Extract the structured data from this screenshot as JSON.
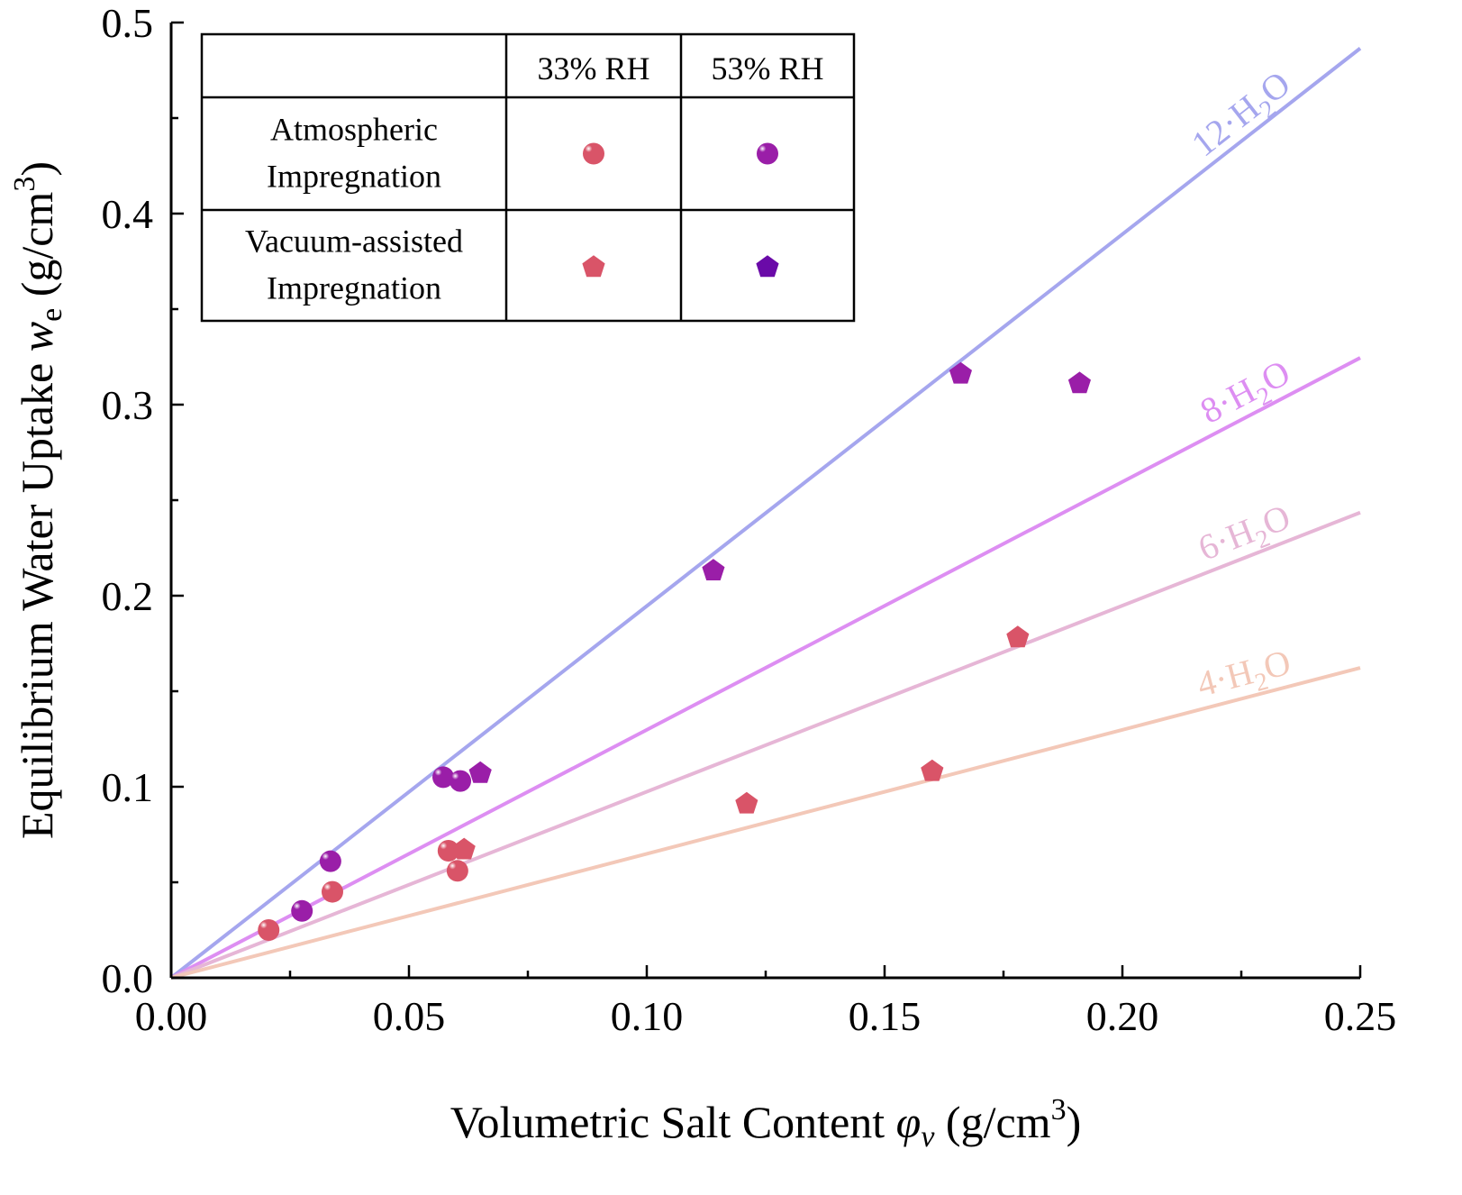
{
  "chart_data": {
    "type": "scatter",
    "xlabel": "Volumetric Salt Content φv (g/cm3)",
    "xlabel_parts": {
      "text": "Volumetric Salt Content ",
      "symbol": "φ",
      "sub": "v",
      "unit": " (g/cm",
      "sup": "3",
      "close": ")"
    },
    "ylabel": "Equilibrium Water Uptake we (g/cm3)",
    "ylabel_parts": {
      "text": "Equilibrium Water Uptake ",
      "symbol": "w",
      "sub": "e",
      "unit": " (g/cm",
      "sup": "3",
      "close": ")"
    },
    "xlim": [
      0,
      0.25
    ],
    "ylim": [
      0,
      0.5
    ],
    "xticks": [
      "0.00",
      "0.05",
      "0.10",
      "0.15",
      "0.20",
      "0.25"
    ],
    "yticks": [
      "0.0",
      "0.1",
      "0.2",
      "0.3",
      "0.4",
      "0.5"
    ],
    "grid": false,
    "legend": {
      "placement": "top-left",
      "columns": [
        "33% RH",
        "53% RH"
      ],
      "rows": [
        {
          "label_lines": [
            "Atmospheric",
            "Impregnation"
          ],
          "marker": "sphere"
        },
        {
          "label_lines": [
            "Vacuum-assisted",
            "Impregnation"
          ],
          "marker": "pentagon"
        }
      ]
    },
    "reference_lines": [
      {
        "name": "12·H2O",
        "label": "12·H",
        "sub": "2",
        "tail": "O",
        "slope": 1.946,
        "color": "#a5a6ee"
      },
      {
        "name": "8·H2O",
        "label": "8·H",
        "sub": "2",
        "tail": "O",
        "slope": 1.298,
        "color": "#dd8ef2"
      },
      {
        "name": "6·H2O",
        "label": "6·H",
        "sub": "2",
        "tail": "O",
        "slope": 0.974,
        "color": "#e6b6d6"
      },
      {
        "name": "4·H2O",
        "label": "4·H",
        "sub": "2",
        "tail": "O",
        "slope": 0.649,
        "color": "#f3c8b8"
      }
    ],
    "series": [
      {
        "name": "Atmospheric Impregnation, 33% RH",
        "marker": "sphere",
        "color": "#d95468",
        "x": [
          0.0205,
          0.0339,
          0.0583,
          0.0602
        ],
        "y": [
          0.025,
          0.045,
          0.0665,
          0.056
        ]
      },
      {
        "name": "Atmospheric Impregnation, 53% RH",
        "marker": "sphere",
        "color": "#9a1ea8",
        "x": [
          0.0275,
          0.0335,
          0.0572,
          0.0608
        ],
        "y": [
          0.035,
          0.061,
          0.105,
          0.103
        ]
      },
      {
        "name": "Vacuum-assisted Impregnation, 33% RH",
        "marker": "pentagon",
        "color": "#d95468",
        "x": [
          0.0616,
          0.121,
          0.16,
          0.178
        ],
        "y": [
          0.068,
          0.092,
          0.109,
          0.179
        ]
      },
      {
        "name": "Vacuum-assisted Impregnation, 53% RH",
        "marker": "pentagon",
        "color": "#9a1ea8",
        "x": [
          0.065,
          0.114,
          0.166,
          0.191
        ],
        "y": [
          0.108,
          0.214,
          0.317,
          0.312
        ]
      }
    ]
  }
}
